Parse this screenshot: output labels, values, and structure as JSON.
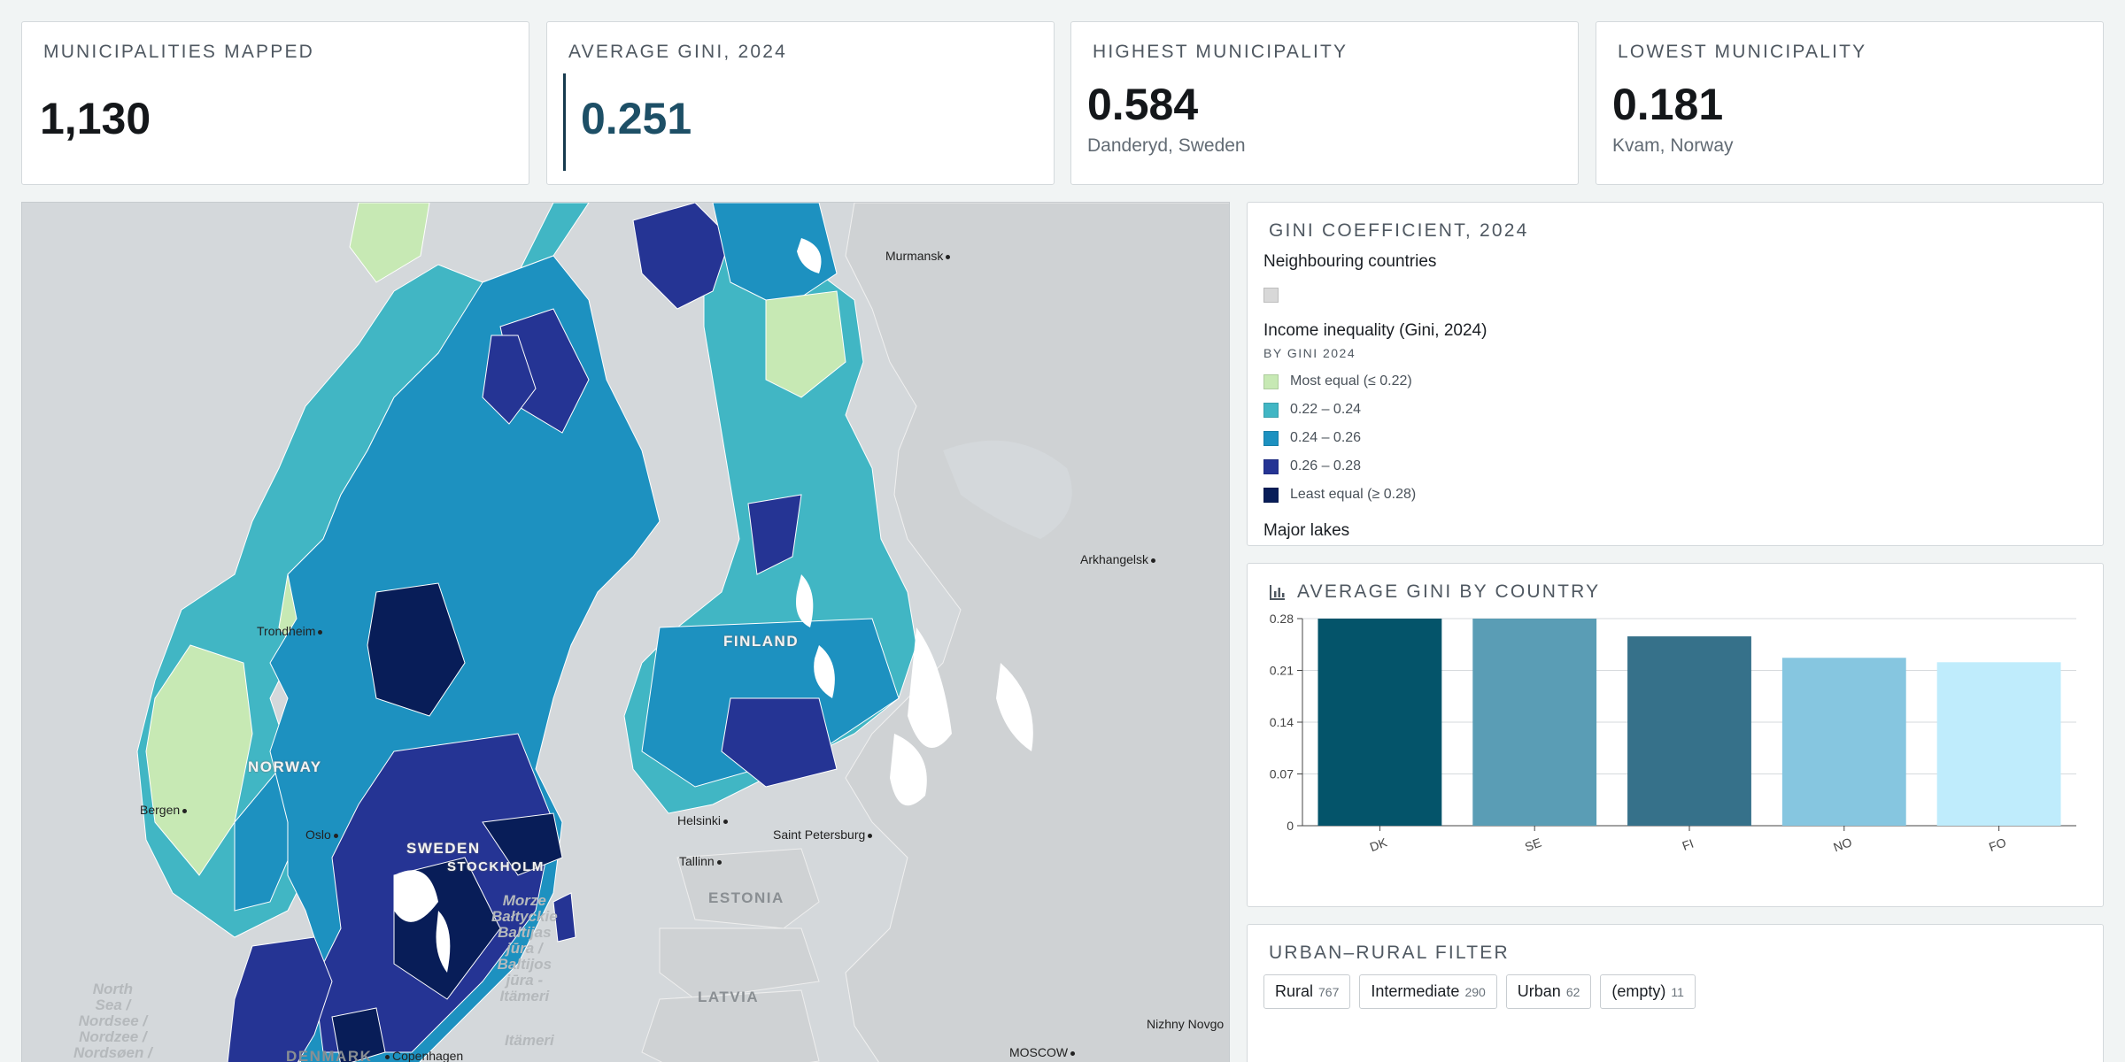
{
  "kpis": [
    {
      "title": "MUNICIPALITIES MAPPED",
      "value": "1,130",
      "sub": ""
    },
    {
      "title": "AVERAGE GINI, 2024",
      "value": "0.251",
      "sub": ""
    },
    {
      "title": "HIGHEST MUNICIPALITY",
      "value": "0.584",
      "sub": "Danderyd, Sweden"
    },
    {
      "title": "LOWEST MUNICIPALITY",
      "value": "0.181",
      "sub": "Kvam, Norway"
    }
  ],
  "map": {
    "cities": [
      "Murmansk",
      "Arkhangelsk",
      "Trondheim",
      "Bergen",
      "Oslo",
      "Stockholm",
      "Helsinki",
      "Tallinn",
      "Saint Petersburg",
      "Copenhagen",
      "Moscow",
      "Nizhny Novgorod"
    ],
    "countries": [
      "NORWAY",
      "SWEDEN",
      "FINLAND",
      "ESTONIA",
      "LATVIA",
      "DENMARK"
    ],
    "city_labels": {
      "murmansk": "Murmansk",
      "arkhangelsk": "Arkhangelsk",
      "trondheim": "Trondheim",
      "bergen": "Bergen",
      "oslo": "Oslo",
      "stockholm": "STOCKHOLM",
      "helsinki": "Helsinki",
      "tallinn": "Tallinn",
      "stpete": "Saint Petersburg",
      "copenhagen": "Copenhagen",
      "moscow": "MOSCOW",
      "nizhny": "Nizhny Novgo"
    },
    "sea_labels": {
      "north_sea": "North\nSea /\nNordsee /\nNordzee /\nNordsøen /\nNordsjøen",
      "baltic": "Morze\nBałtyckie\nBaltijas\njūra /\nBaltijos\njūra -\nItämeri",
      "itameri": "Itämeri"
    }
  },
  "legend": {
    "title": "GINI COEFFICIENT, 2024",
    "groups": [
      {
        "head": "Neighbouring countries",
        "sub": "",
        "items": [
          {
            "label": "",
            "color": "#d8d8d8"
          }
        ]
      },
      {
        "head": "Income inequality (Gini, 2024)",
        "sub": "BY GINI 2024",
        "items": [
          {
            "label": "Most equal (≤ 0.22)",
            "color": "#c7e9b4"
          },
          {
            "label": "0.22 – 0.24",
            "color": "#41b6c4"
          },
          {
            "label": "0.24 – 0.26",
            "color": "#1d91c0"
          },
          {
            "label": "0.26 – 0.28",
            "color": "#253494"
          },
          {
            "label": "Least equal (≥ 0.28)",
            "color": "#081d58"
          }
        ]
      },
      {
        "head": "Major lakes",
        "sub": "",
        "items": [
          {
            "label": "",
            "color": "#ffffff"
          }
        ]
      }
    ]
  },
  "bar_panel": {
    "title": "AVERAGE GINI BY COUNTRY",
    "icon": "bar-chart-icon"
  },
  "chart_data": {
    "type": "bar",
    "title": "AVERAGE GINI BY COUNTRY",
    "categories": [
      "DK",
      "SE",
      "FI",
      "NO",
      "FO"
    ],
    "values": [
      0.28,
      0.28,
      0.256,
      0.227,
      0.221
    ],
    "colors": [
      "#04546a",
      "#5a9db5",
      "#36718a",
      "#86c6e0",
      "#bfecfc"
    ],
    "yticks": [
      0,
      0.07,
      0.14,
      0.21,
      0.28
    ],
    "ylim": [
      0,
      0.28
    ],
    "grid": true,
    "xlabel": "",
    "ylabel": ""
  },
  "filter": {
    "title": "URBAN–RURAL FILTER",
    "options": [
      {
        "label": "Rural",
        "count": "767"
      },
      {
        "label": "Intermediate",
        "count": "290"
      },
      {
        "label": "Urban",
        "count": "62"
      },
      {
        "label": "(empty)",
        "count": "11"
      }
    ]
  }
}
